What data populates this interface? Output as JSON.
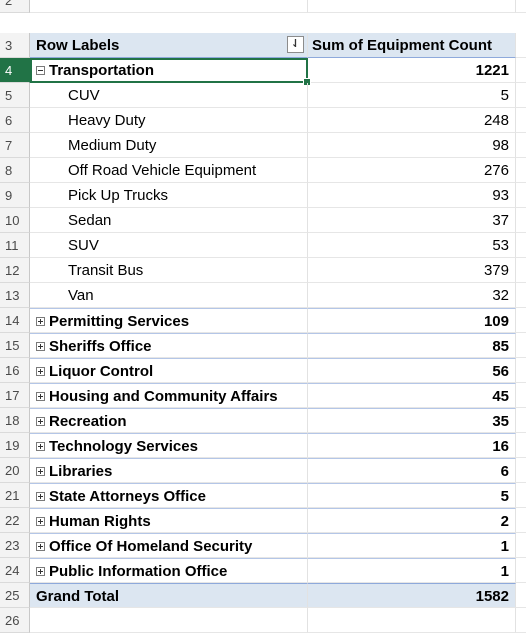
{
  "pivot": {
    "header": {
      "row_labels": "Row Labels",
      "value_label": "Sum of Equipment Count"
    },
    "row_numbers": [
      "2",
      "3",
      "4",
      "5",
      "6",
      "7",
      "8",
      "9",
      "10",
      "11",
      "12",
      "13",
      "14",
      "15",
      "16",
      "17",
      "18",
      "19",
      "20",
      "21",
      "22",
      "23",
      "24",
      "25",
      "26"
    ],
    "expanded_group": {
      "label": "Transportation",
      "value": "1221",
      "items": [
        {
          "label": "CUV",
          "value": "5"
        },
        {
          "label": "Heavy Duty",
          "value": "248"
        },
        {
          "label": "Medium Duty",
          "value": "98"
        },
        {
          "label": "Off Road Vehicle Equipment",
          "value": "276"
        },
        {
          "label": "Pick Up Trucks",
          "value": "93"
        },
        {
          "label": "Sedan",
          "value": "37"
        },
        {
          "label": "SUV",
          "value": "53"
        },
        {
          "label": "Transit Bus",
          "value": "379"
        },
        {
          "label": "Van",
          "value": "32"
        }
      ]
    },
    "collapsed_groups": [
      {
        "label": "Permitting Services",
        "value": "109"
      },
      {
        "label": "Sheriffs Office",
        "value": "85"
      },
      {
        "label": "Liquor Control",
        "value": "56"
      },
      {
        "label": "Housing and Community Affairs",
        "value": "45"
      },
      {
        "label": "Recreation",
        "value": "35"
      },
      {
        "label": "Technology Services",
        "value": "16"
      },
      {
        "label": "Libraries",
        "value": "6"
      },
      {
        "label": "State Attorneys Office",
        "value": "5"
      },
      {
        "label": "Human Rights",
        "value": "2"
      },
      {
        "label": "Office Of Homeland Security",
        "value": "1"
      },
      {
        "label": "Public Information Office",
        "value": "1"
      }
    ],
    "grand_total": {
      "label": "Grand Total",
      "value": "1582"
    }
  },
  "colors": {
    "header_fill": "#dce6f1",
    "selection": "#217346",
    "row_header": "#f3f3f3"
  }
}
